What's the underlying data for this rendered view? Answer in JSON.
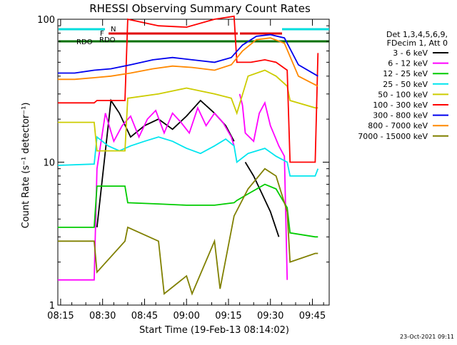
{
  "chart_data": {
    "type": "line",
    "title": "RHESSI Observing Summary Count Rates",
    "xlabel": "Start Time (19-Feb-13 08:14:02)",
    "ylabel": "Count Rate (s⁻¹ detector⁻¹)",
    "y_scale": "log",
    "ylim": [
      1,
      100
    ],
    "xlim": [
      "08:14",
      "09:51"
    ],
    "x_ticks": [
      "08:15",
      "08:30",
      "08:45",
      "09:00",
      "09:15",
      "09:30",
      "09:45"
    ],
    "y_ticks": [
      "1",
      "10",
      "100"
    ],
    "legend": {
      "header": [
        "Det 1,3,4,5,6,9,",
        "FDecim 1, Att 0"
      ],
      "placement": "right"
    },
    "flags": [
      {
        "label": "N",
        "color": "#00dddd"
      },
      {
        "label": "F",
        "color": "#e00000"
      },
      {
        "label": "RDO",
        "color": "#007000"
      },
      {
        "label": "RDO",
        "color": "#007000"
      }
    ],
    "timestamp": "23-Oct-2021 09:11",
    "series": [
      {
        "name": "3 - 6 keV",
        "color": "#000000",
        "x": [
          "08:14",
          "08:27",
          "08:28",
          "08:33",
          "08:36",
          "08:40",
          "08:45",
          "08:50",
          "08:55",
          "09:00",
          "09:05",
          "09:10",
          "09:14",
          "09:17",
          "09:18",
          "09:21",
          "09:24",
          "09:27",
          "09:30",
          "09:33",
          "09:36"
        ],
        "y": [
          null,
          null,
          3.5,
          27,
          22,
          15,
          18,
          20,
          17,
          21,
          27,
          22,
          18,
          14,
          null,
          10,
          8,
          6,
          4.5,
          3,
          null
        ]
      },
      {
        "name": "6 - 12 keV",
        "color": "#ff00ff",
        "x": [
          "08:14",
          "08:27",
          "08:28",
          "08:31",
          "08:34",
          "08:37",
          "08:40",
          "08:43",
          "08:46",
          "08:49",
          "08:52",
          "08:55",
          "08:58",
          "09:01",
          "09:04",
          "09:07",
          "09:10",
          "09:13",
          "09:16",
          "09:17",
          "09:18",
          "09:19",
          "09:20",
          "09:21",
          "09:24",
          "09:26",
          "09:28",
          "09:30",
          "09:33",
          "09:35",
          "09:36"
        ],
        "y": [
          1.5,
          1.5,
          9,
          22,
          14,
          18,
          21,
          15,
          20,
          23,
          16,
          22,
          19,
          16,
          24,
          18,
          22,
          19,
          15,
          13,
          null,
          30,
          25,
          16,
          14,
          22,
          26,
          18,
          13,
          11,
          1.5
        ]
      },
      {
        "name": "12 - 25 keV",
        "color": "#00cc00",
        "x": [
          "08:14",
          "08:27",
          "08:28",
          "08:38",
          "08:39",
          "08:50",
          "09:00",
          "09:10",
          "09:17",
          "09:18",
          "09:22",
          "09:28",
          "09:32",
          "09:36",
          "09:37",
          "09:46",
          "09:47"
        ],
        "y": [
          3.5,
          3.5,
          6.8,
          6.8,
          5.2,
          5.1,
          5.0,
          5.0,
          5.2,
          5.4,
          6,
          7,
          6.5,
          4.8,
          3.2,
          3.0,
          3.0
        ]
      },
      {
        "name": "25 - 50 keV",
        "color": "#00e5ee",
        "x": [
          "08:14",
          "08:27",
          "08:28",
          "08:32",
          "08:36",
          "08:40",
          "08:45",
          "08:50",
          "08:55",
          "09:00",
          "09:05",
          "09:10",
          "09:14",
          "09:17",
          "09:18",
          "09:22",
          "09:28",
          "09:32",
          "09:36",
          "09:37",
          "09:46",
          "09:47"
        ],
        "y": [
          9.5,
          9.7,
          15,
          13,
          12,
          13,
          14,
          15,
          14,
          12.5,
          11.5,
          13,
          14.5,
          13,
          10,
          11.5,
          12.5,
          11,
          10,
          8,
          8,
          9
        ]
      },
      {
        "name": "50 - 100 keV",
        "color": "#cccc00",
        "x": [
          "08:14",
          "08:27",
          "08:28",
          "08:38",
          "08:39",
          "08:50",
          "09:00",
          "09:10",
          "09:16",
          "09:18",
          "09:22",
          "09:28",
          "09:32",
          "09:36",
          "09:37",
          "09:46",
          "09:47"
        ],
        "y": [
          19,
          19,
          12,
          12,
          28,
          30,
          33,
          30,
          28,
          22,
          40,
          44,
          40,
          34,
          27,
          24,
          24
        ]
      },
      {
        "name": "100 - 300 keV",
        "color": "#ff0000",
        "x": [
          "08:14",
          "08:27",
          "08:28",
          "08:38",
          "08:39",
          "08:50",
          "09:00",
          "09:10",
          "09:17",
          "09:18",
          "09:23",
          "09:28",
          "09:32",
          "09:36",
          "09:37",
          "09:46",
          "09:47"
        ],
        "y": [
          26,
          26,
          27,
          27,
          100,
          90,
          88,
          100,
          105,
          50,
          50,
          52,
          50,
          44,
          10,
          10,
          58
        ]
      },
      {
        "name": "300 - 800 keV",
        "color": "#0000ee",
        "x": [
          "08:14",
          "08:20",
          "08:27",
          "08:33",
          "08:40",
          "08:48",
          "08:55",
          "09:02",
          "09:10",
          "09:16",
          "09:20",
          "09:25",
          "09:30",
          "09:35",
          "09:40",
          "09:47"
        ],
        "y": [
          42,
          42,
          44,
          45,
          48,
          52,
          54,
          52,
          50,
          54,
          66,
          76,
          78,
          74,
          48,
          40
        ]
      },
      {
        "name": "800 - 7000 keV",
        "color": "#ff8800",
        "x": [
          "08:14",
          "08:20",
          "08:27",
          "08:33",
          "08:40",
          "08:48",
          "08:55",
          "09:02",
          "09:10",
          "09:16",
          "09:20",
          "09:25",
          "09:30",
          "09:35",
          "09:40",
          "09:47"
        ],
        "y": [
          38,
          38,
          39,
          40,
          42,
          45,
          47,
          46,
          44,
          48,
          60,
          72,
          74,
          68,
          40,
          34
        ]
      },
      {
        "name": "7000 - 15000 keV",
        "color": "#808000",
        "x": [
          "08:14",
          "08:27",
          "08:28",
          "08:38",
          "08:39",
          "08:50",
          "08:52",
          "09:00",
          "09:02",
          "09:10",
          "09:12",
          "09:17",
          "09:22",
          "09:28",
          "09:32",
          "09:36",
          "09:37",
          "09:46",
          "09:47"
        ],
        "y": [
          2.8,
          2.8,
          1.7,
          2.8,
          3.5,
          2.8,
          1.2,
          1.6,
          1.2,
          2.8,
          1.3,
          4.2,
          6.5,
          9,
          8,
          4.5,
          2.0,
          2.3,
          2.3
        ]
      }
    ]
  }
}
